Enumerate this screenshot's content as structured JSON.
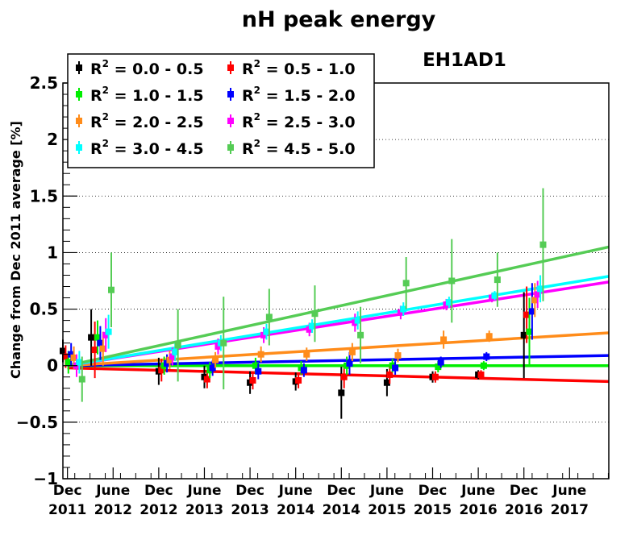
{
  "chart_data": {
    "type": "scatter",
    "title": "nH peak energy",
    "subtitle": "EH1AD1",
    "xlabel": "",
    "ylabel": "Change from Dec 2011 average [%]",
    "ylim": [
      -1,
      2.5
    ],
    "xlim": [
      2011.87,
      2017.85
    ],
    "grid": "horizontal-dotted",
    "legend_position": "top-left",
    "y_ticks": [
      {
        "value": -1,
        "label": "−1"
      },
      {
        "value": -0.5,
        "label": "−0.5"
      },
      {
        "value": 0,
        "label": "0"
      },
      {
        "value": 0.5,
        "label": "0.5"
      },
      {
        "value": 1,
        "label": "1"
      },
      {
        "value": 1.5,
        "label": "1.5"
      },
      {
        "value": 2,
        "label": "2"
      },
      {
        "value": 2.5,
        "label": "2.5"
      }
    ],
    "x_ticks": [
      {
        "value": 2011.92,
        "line1": "Dec",
        "line2": "2011"
      },
      {
        "value": 2012.42,
        "line1": "June",
        "line2": "2012"
      },
      {
        "value": 2012.92,
        "line1": "Dec",
        "line2": "2012"
      },
      {
        "value": 2013.42,
        "line1": "June",
        "line2": "2013"
      },
      {
        "value": 2013.92,
        "line1": "Dec",
        "line2": "2013"
      },
      {
        "value": 2014.42,
        "line1": "June",
        "line2": "2014"
      },
      {
        "value": 2014.92,
        "line1": "Dec",
        "line2": "2014"
      },
      {
        "value": 2015.42,
        "line1": "June",
        "line2": "2015"
      },
      {
        "value": 2015.92,
        "line1": "Dec",
        "line2": "2015"
      },
      {
        "value": 2016.42,
        "line1": "June",
        "line2": "2016"
      },
      {
        "value": 2016.92,
        "line1": "Dec",
        "line2": "2016"
      },
      {
        "value": 2017.42,
        "line1": "June",
        "line2": "2017"
      }
    ],
    "series": [
      {
        "name": "= 0.0 - 0.5",
        "color": "#000000",
        "points": [
          [
            2011.87,
            0.13,
            0.1
          ],
          [
            2012.18,
            0.25,
            0.25
          ],
          [
            2012.92,
            -0.05,
            0.12
          ],
          [
            2013.42,
            -0.1,
            0.1
          ],
          [
            2013.92,
            -0.15,
            0.1
          ],
          [
            2014.42,
            -0.14,
            0.08
          ],
          [
            2014.92,
            -0.24,
            0.23
          ],
          [
            2015.42,
            -0.15,
            0.12
          ],
          [
            2015.92,
            -0.1,
            0.05
          ],
          [
            2016.42,
            -0.08,
            0.04
          ],
          [
            2016.92,
            0.27,
            0.38
          ]
        ],
        "fit": [
          [
            2011.92,
            0.0
          ],
          [
            2017.85,
            0.0
          ]
        ]
      },
      {
        "name": "= 0.5 - 1.0",
        "color": "#ff0000",
        "points": [
          [
            2011.9,
            0.08,
            0.1
          ],
          [
            2012.22,
            0.14,
            0.25
          ],
          [
            2012.95,
            -0.04,
            0.1
          ],
          [
            2013.45,
            -0.12,
            0.08
          ],
          [
            2013.95,
            -0.13,
            0.08
          ],
          [
            2014.45,
            -0.13,
            0.07
          ],
          [
            2014.95,
            -0.1,
            0.1
          ],
          [
            2015.45,
            -0.08,
            0.08
          ],
          [
            2015.95,
            -0.1,
            0.05
          ],
          [
            2016.45,
            -0.08,
            0.04
          ],
          [
            2016.95,
            0.45,
            0.25
          ]
        ],
        "fit": [
          [
            2011.92,
            -0.02
          ],
          [
            2017.85,
            -0.14
          ]
        ]
      },
      {
        "name": "= 1.0 - 1.5",
        "color": "#00ee00",
        "points": [
          [
            2011.93,
            0.03,
            0.1
          ],
          [
            2012.25,
            0.25,
            0.15
          ],
          [
            2012.98,
            0.0,
            0.08
          ],
          [
            2013.48,
            -0.04,
            0.07
          ],
          [
            2013.98,
            0.0,
            0.07
          ],
          [
            2014.48,
            -0.02,
            0.06
          ],
          [
            2014.98,
            0.0,
            0.08
          ],
          [
            2015.48,
            0.0,
            0.06
          ],
          [
            2015.98,
            -0.01,
            0.05
          ],
          [
            2016.48,
            0.0,
            0.04
          ],
          [
            2016.98,
            0.3,
            0.3
          ]
        ],
        "fit": [
          [
            2011.92,
            0.0
          ],
          [
            2017.85,
            0.0
          ]
        ]
      },
      {
        "name": "= 1.5 - 2.0",
        "color": "#0000ff",
        "points": [
          [
            2011.96,
            0.1,
            0.1
          ],
          [
            2012.28,
            0.2,
            0.15
          ],
          [
            2013.01,
            0.02,
            0.08
          ],
          [
            2013.51,
            -0.02,
            0.07
          ],
          [
            2014.01,
            -0.05,
            0.07
          ],
          [
            2014.51,
            -0.04,
            0.06
          ],
          [
            2015.01,
            0.02,
            0.1
          ],
          [
            2015.51,
            -0.02,
            0.06
          ],
          [
            2016.01,
            0.03,
            0.05
          ],
          [
            2016.51,
            0.08,
            0.04
          ],
          [
            2017.01,
            0.48,
            0.25
          ]
        ],
        "fit": [
          [
            2011.92,
            0.0
          ],
          [
            2017.85,
            0.09
          ]
        ]
      },
      {
        "name": "= 2.0 - 2.5",
        "color": "#ff8c1a",
        "points": [
          [
            2011.99,
            0.07,
            0.1
          ],
          [
            2012.31,
            0.15,
            0.15
          ],
          [
            2013.04,
            0.05,
            0.08
          ],
          [
            2013.54,
            0.05,
            0.07
          ],
          [
            2014.04,
            0.1,
            0.07
          ],
          [
            2014.54,
            0.1,
            0.06
          ],
          [
            2015.04,
            0.12,
            0.08
          ],
          [
            2015.54,
            0.09,
            0.06
          ],
          [
            2016.04,
            0.23,
            0.08
          ],
          [
            2016.54,
            0.26,
            0.05
          ],
          [
            2017.04,
            0.58,
            0.15
          ]
        ],
        "fit": [
          [
            2011.92,
            0.0
          ],
          [
            2017.85,
            0.29
          ]
        ]
      },
      {
        "name": "= 2.5 - 3.0",
        "color": "#ff00ff",
        "points": [
          [
            2012.02,
            0.0,
            0.1
          ],
          [
            2012.34,
            0.27,
            0.15
          ],
          [
            2013.07,
            0.08,
            0.08
          ],
          [
            2013.57,
            0.17,
            0.07
          ],
          [
            2014.07,
            0.27,
            0.07
          ],
          [
            2014.57,
            0.32,
            0.06
          ],
          [
            2015.07,
            0.38,
            0.08
          ],
          [
            2015.57,
            0.47,
            0.06
          ],
          [
            2016.07,
            0.54,
            0.05
          ],
          [
            2016.57,
            0.6,
            0.04
          ],
          [
            2017.07,
            0.63,
            0.12
          ]
        ],
        "fit": [
          [
            2011.92,
            0.0
          ],
          [
            2017.85,
            0.74
          ]
        ]
      },
      {
        "name": "= 3.0 - 4.5",
        "color": "#00ffff",
        "points": [
          [
            2012.05,
            0.03,
            0.1
          ],
          [
            2012.37,
            0.3,
            0.15
          ],
          [
            2013.1,
            0.12,
            0.08
          ],
          [
            2013.6,
            0.2,
            0.07
          ],
          [
            2014.1,
            0.3,
            0.07
          ],
          [
            2014.6,
            0.35,
            0.06
          ],
          [
            2015.1,
            0.4,
            0.08
          ],
          [
            2015.6,
            0.5,
            0.06
          ],
          [
            2016.1,
            0.56,
            0.05
          ],
          [
            2016.6,
            0.62,
            0.04
          ],
          [
            2017.1,
            0.68,
            0.12
          ]
        ],
        "fit": [
          [
            2011.92,
            0.0
          ],
          [
            2017.85,
            0.79
          ]
        ]
      },
      {
        "name": "= 4.5 - 5.0",
        "color": "#55cc55",
        "points": [
          [
            2012.08,
            -0.12,
            0.2
          ],
          [
            2012.4,
            0.67,
            0.33
          ],
          [
            2013.13,
            0.18,
            0.32
          ],
          [
            2013.63,
            0.2,
            0.41
          ],
          [
            2014.13,
            0.43,
            0.25
          ],
          [
            2014.63,
            0.46,
            0.25
          ],
          [
            2015.13,
            0.27,
            0.25
          ],
          [
            2015.63,
            0.73,
            0.23
          ],
          [
            2016.13,
            0.75,
            0.37
          ],
          [
            2016.63,
            0.76,
            0.24
          ],
          [
            2017.13,
            1.07,
            0.5
          ]
        ],
        "fit": [
          [
            2011.92,
            0.0
          ],
          [
            2017.85,
            1.05
          ]
        ]
      }
    ]
  }
}
